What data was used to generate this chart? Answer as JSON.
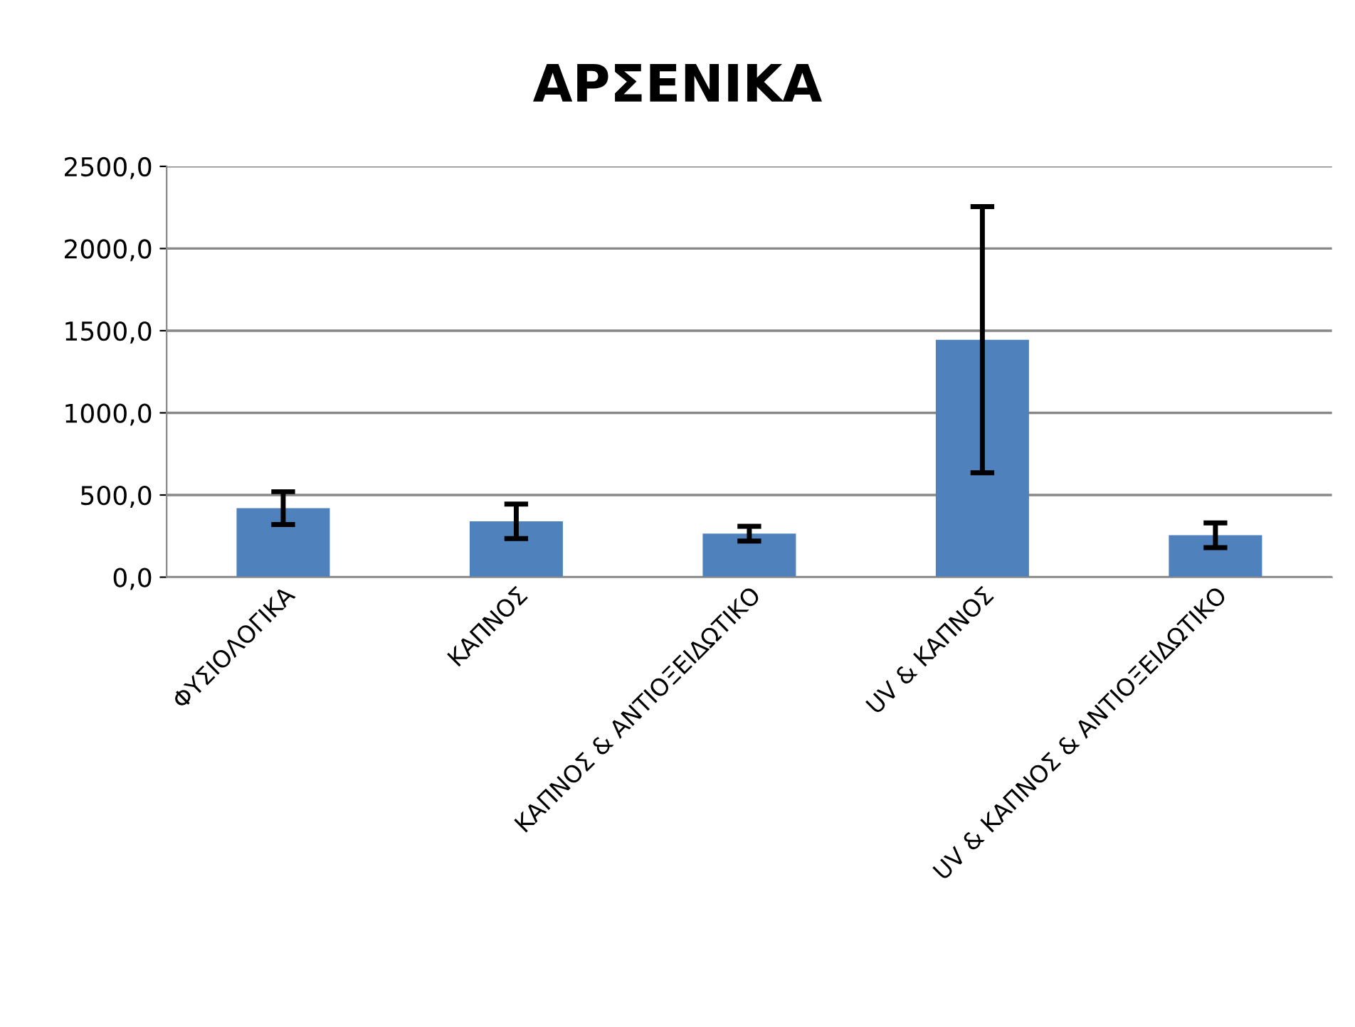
{
  "chart_data": {
    "type": "bar",
    "title": "ΑΡΣΕΝΙΚΑ",
    "categories": [
      "ΦΥΣΙΟΛΟΓΙΚΑ",
      "ΚΑΠΝΟΣ",
      "ΚΑΠΝΟΣ & ΑΝΤΙΟΞΕΙΔΩΤΙΚΟ",
      "UV & ΚΑΠΝΟΣ",
      "UV & ΚΑΠΝΟΣ & ΑΝΤΙΟΞΕΙΔΩΤΙΚΟ"
    ],
    "values": [
      420,
      340,
      265,
      1445,
      255
    ],
    "errors": [
      100,
      105,
      45,
      810,
      75
    ],
    "color": "#4f81bd",
    "ylim": [
      0,
      2500
    ],
    "yticks": [
      {
        "value": 0,
        "label": "0,0"
      },
      {
        "value": 500,
        "label": "500,0"
      },
      {
        "value": 1000,
        "label": "1000,0"
      },
      {
        "value": 1500,
        "label": "1500,0"
      },
      {
        "value": 2000,
        "label": "2000,0"
      },
      {
        "value": 2500,
        "label": "2500,0"
      }
    ],
    "grid": "y",
    "legend": false
  }
}
